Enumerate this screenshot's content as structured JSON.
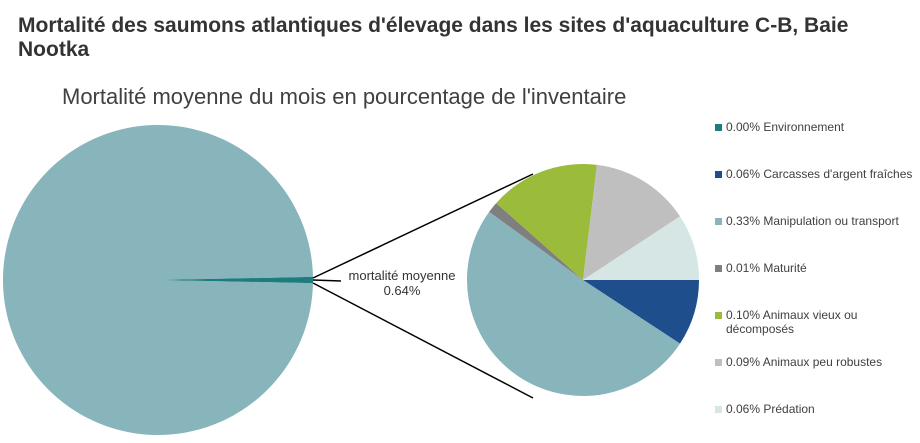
{
  "title": "Mortalité des saumons atlantiques d'élevage dans les sites d'aquaculture C-B, Baie Nootka",
  "chart_data": {
    "type": "pie",
    "subtitle": "Mortalité moyenne du mois en pourcentage de l'inventaire",
    "aggregate_label": "mortalité moyenne",
    "aggregate_value_label": "0.64%",
    "aggregate_value": 0.64,
    "main_pie_color": "#88b4bc",
    "aggregate_color": "#1e7b7e",
    "legend_position": "right",
    "slices": [
      {
        "label": "0.00% Environnement",
        "value": 0.0,
        "color": "#1e7b7e"
      },
      {
        "label": "0.06% Carcasses d'argent fraîches",
        "value": 0.06,
        "color": "#1f4e8c"
      },
      {
        "label": "0.33% Manipulation ou transport",
        "value": 0.33,
        "color": "#88b4bc"
      },
      {
        "label": "0.01% Maturité",
        "value": 0.01,
        "color": "#7f7f7f"
      },
      {
        "label": "0.10% Animaux vieux ou décomposés",
        "value": 0.1,
        "color": "#9bbb3a"
      },
      {
        "label": "0.09% Animaux peu robustes",
        "value": 0.09,
        "color": "#bfbfbf"
      },
      {
        "label": "0.06% Prédation",
        "value": 0.06,
        "color": "#d6e6e4"
      }
    ]
  }
}
